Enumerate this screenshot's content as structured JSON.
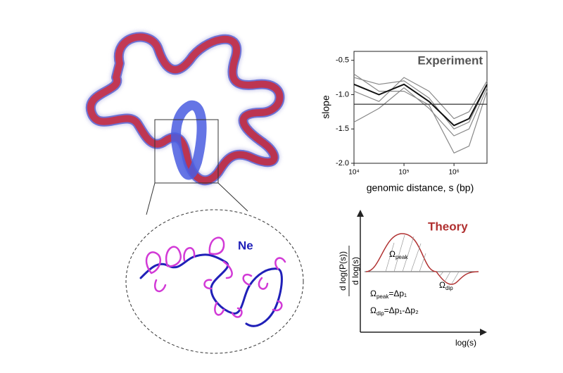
{
  "chart_data": {
    "type": "line",
    "title": "Experiment",
    "xlabel": "genomic distance, s (bp)",
    "ylabel": "slope",
    "xscale": "log",
    "xlim": [
      10000,
      4570000
    ],
    "ylim": [
      -2.0,
      -0.37
    ],
    "xticks": [
      {
        "value": 10000,
        "label": "10⁴"
      },
      {
        "value": 100000,
        "label": "10⁵"
      },
      {
        "value": 1000000,
        "label": "10⁶"
      }
    ],
    "yticks": [
      -0.5,
      {
        "value": -1,
        "label": "-1.0"
      },
      -1.5,
      {
        "value": -2,
        "label": "-2.0"
      }
    ],
    "hline": -1.14,
    "x": [
      10000,
      31623,
      100000,
      316228,
      1000000,
      2000000,
      4570000
    ],
    "series": [
      {
        "color": "#888888",
        "values": [
          -0.75,
          -0.85,
          -0.8,
          -1.05,
          -1.5,
          -1.4,
          -0.85
        ]
      },
      {
        "color": "#888888",
        "values": [
          -1.4,
          -1.2,
          -0.9,
          -1.2,
          -1.6,
          -1.5,
          -0.9
        ]
      },
      {
        "color": "#888888",
        "values": [
          -0.7,
          -0.95,
          -0.95,
          -1.15,
          -1.85,
          -1.75,
          -0.95
        ]
      },
      {
        "color": "#888888",
        "values": [
          -0.95,
          -1.1,
          -0.75,
          -0.95,
          -1.35,
          -1.25,
          -0.8
        ]
      },
      {
        "color": "#111111",
        "values": [
          -0.85,
          -1.0,
          -0.85,
          -1.1,
          -1.45,
          -1.35,
          -0.85
        ]
      }
    ]
  },
  "illustration": {
    "label": "Ne"
  },
  "theory": {
    "title": "Theory",
    "ylabel_top": "d log(P(s))",
    "ylabel_bottom": "d log(s)",
    "xlabel": "log(s)",
    "peak": {
      "symbol": "Ω",
      "sub": "peak"
    },
    "dip": {
      "symbol": "Ω",
      "sub": "dip"
    },
    "eq_peak": {
      "symbol": "Ω",
      "sub": "peak",
      "rhs": "=Δp₁"
    },
    "eq_dip": {
      "symbol": "Ω",
      "sub": "dip",
      "rhs": "=Δp₁-Δp₂"
    }
  }
}
